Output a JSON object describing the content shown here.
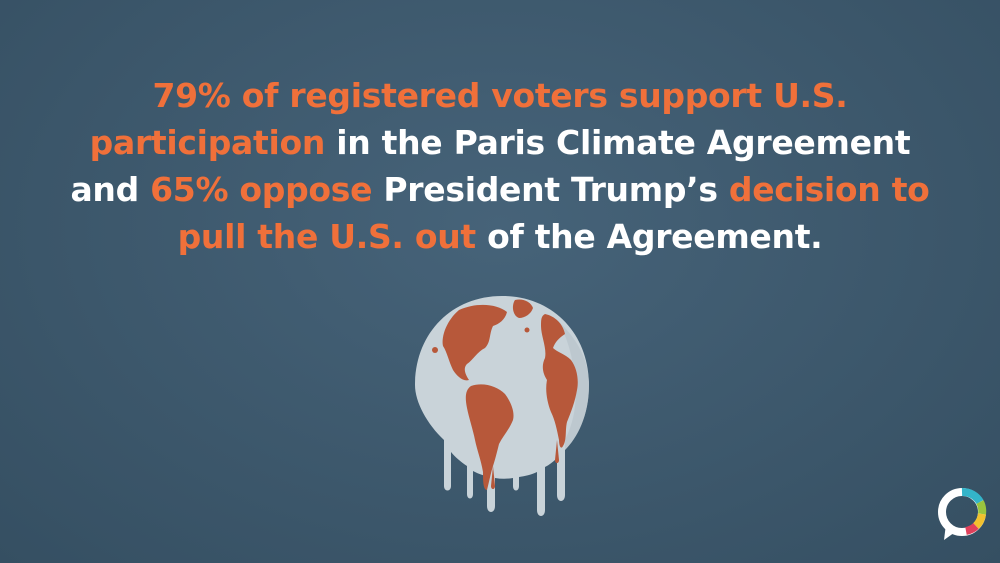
{
  "headline": {
    "lines": [
      [
        {
          "text": "79% of registered voters support U.S.",
          "highlight": true
        }
      ],
      [
        {
          "text": "participation",
          "highlight": true
        },
        {
          "text": " in the Paris Climate Agreement",
          "highlight": false
        }
      ],
      [
        {
          "text": "and ",
          "highlight": false
        },
        {
          "text": "65% oppose",
          "highlight": true
        },
        {
          "text": " President Trump’s ",
          "highlight": false
        },
        {
          "text": "decision to",
          "highlight": true
        }
      ],
      [
        {
          "text": "pull the U.S. out",
          "highlight": true
        },
        {
          "text": " of the Agreement.",
          "highlight": false
        }
      ]
    ]
  },
  "colors": {
    "background": "#3f5b70",
    "highlight": "#f0703a",
    "text": "#ffffff",
    "globe_land": "#b7583a",
    "globe_ocean": "#c9d3d9"
  },
  "graphics": {
    "globe": "melting-globe-illustration",
    "logo": "speech-bubble-logo"
  }
}
